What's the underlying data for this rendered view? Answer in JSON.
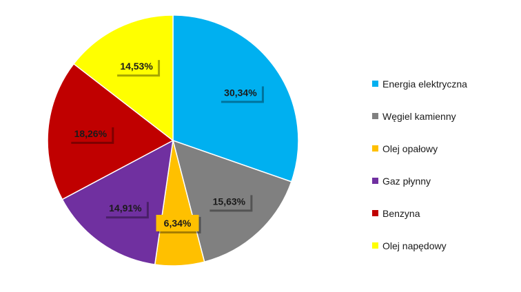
{
  "chart_data": {
    "type": "pie",
    "categories": [
      "Energia elektryczna",
      "Węgiel kamienny",
      "Olej opałowy",
      "Gaz płynny",
      "Benzyna",
      "Olej napędowy"
    ],
    "values": [
      30.34,
      15.63,
      6.34,
      14.91,
      18.26,
      14.53
    ],
    "data_labels": [
      "30,34%",
      "15,63%",
      "6,34%",
      "14,91%",
      "18,26%",
      "14,53%"
    ],
    "colors": [
      "#00b0f0",
      "#808080",
      "#ffc000",
      "#7030a0",
      "#c00000",
      "#ffff00"
    ],
    "start_angle_deg": 0,
    "direction": "clockwise",
    "legend_position": "right"
  }
}
